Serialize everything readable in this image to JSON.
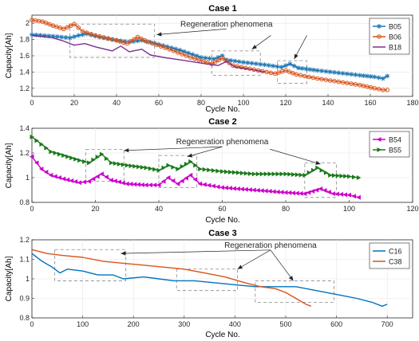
{
  "chart_data": [
    {
      "type": "line",
      "title": "Case 1",
      "xlabel": "Cycle No.",
      "ylabel": "Capacity[Ah]",
      "xlim": [
        0,
        180
      ],
      "ylim": [
        1.1,
        2.1
      ],
      "xticks": [
        "0",
        "20",
        "40",
        "60",
        "80",
        "100",
        "120",
        "140",
        "160",
        "180"
      ],
      "yticks": [
        "1.2",
        "1.4",
        "1.6",
        "1.8",
        "2"
      ],
      "legend_position": "top-right",
      "annotation": "Regeneration phenomena",
      "regions": [
        [
          18,
          58,
          1.58,
          1.99
        ],
        [
          85,
          108,
          1.36,
          1.66
        ],
        [
          116,
          130,
          1.26,
          1.54
        ]
      ],
      "arrows": [
        {
          "text_x": 92,
          "text_y": 1.96,
          "x": 59,
          "y": 1.86
        },
        {
          "text_x": 113,
          "text_y": 1.88,
          "x": 104,
          "y": 1.68
        },
        {
          "text_x": 130,
          "text_y": 1.88,
          "x": 124,
          "y": 1.56
        }
      ],
      "series": [
        {
          "name": "B05",
          "color": "#1f77b4",
          "marker": "star",
          "points": [
            [
              0,
              1.86
            ],
            [
              10,
              1.84
            ],
            [
              18,
              1.82
            ],
            [
              22,
              1.85
            ],
            [
              26,
              1.87
            ],
            [
              32,
              1.83
            ],
            [
              40,
              1.79
            ],
            [
              46,
              1.77
            ],
            [
              52,
              1.79
            ],
            [
              60,
              1.74
            ],
            [
              70,
              1.67
            ],
            [
              80,
              1.58
            ],
            [
              86,
              1.56
            ],
            [
              90,
              1.6
            ],
            [
              92,
              1.55
            ],
            [
              100,
              1.52
            ],
            [
              110,
              1.49
            ],
            [
              118,
              1.46
            ],
            [
              122,
              1.5
            ],
            [
              126,
              1.45
            ],
            [
              135,
              1.42
            ],
            [
              145,
              1.39
            ],
            [
              155,
              1.36
            ],
            [
              162,
              1.34
            ],
            [
              166,
              1.32
            ],
            [
              168,
              1.35
            ]
          ]
        },
        {
          "name": "B06",
          "color": "#d95319",
          "marker": "circle",
          "points": [
            [
              0,
              2.04
            ],
            [
              5,
              2.02
            ],
            [
              10,
              1.97
            ],
            [
              15,
              1.93
            ],
            [
              20,
              1.99
            ],
            [
              24,
              1.9
            ],
            [
              30,
              1.85
            ],
            [
              40,
              1.79
            ],
            [
              45,
              1.75
            ],
            [
              50,
              1.83
            ],
            [
              55,
              1.77
            ],
            [
              65,
              1.68
            ],
            [
              75,
              1.58
            ],
            [
              85,
              1.5
            ],
            [
              90,
              1.57
            ],
            [
              95,
              1.48
            ],
            [
              105,
              1.43
            ],
            [
              115,
              1.38
            ],
            [
              120,
              1.42
            ],
            [
              125,
              1.37
            ],
            [
              135,
              1.32
            ],
            [
              145,
              1.28
            ],
            [
              155,
              1.24
            ],
            [
              162,
              1.2
            ],
            [
              166,
              1.18
            ],
            [
              168,
              1.18
            ]
          ]
        },
        {
          "name": "B18",
          "color": "#7e2f8e",
          "marker": "line",
          "points": [
            [
              0,
              1.85
            ],
            [
              10,
              1.82
            ],
            [
              15,
              1.78
            ],
            [
              20,
              1.73
            ],
            [
              25,
              1.75
            ],
            [
              30,
              1.71
            ],
            [
              38,
              1.66
            ],
            [
              42,
              1.72
            ],
            [
              46,
              1.65
            ],
            [
              52,
              1.68
            ],
            [
              56,
              1.61
            ],
            [
              62,
              1.58
            ],
            [
              70,
              1.55
            ],
            [
              80,
              1.51
            ],
            [
              88,
              1.48
            ],
            [
              92,
              1.53
            ],
            [
              96,
              1.46
            ],
            [
              104,
              1.43
            ],
            [
              110,
              1.4
            ]
          ]
        }
      ]
    },
    {
      "type": "line",
      "title": "Case 2",
      "xlabel": "Cycle No.",
      "ylabel": "Capacity[Ah]",
      "xlim": [
        0,
        120
      ],
      "ylim": [
        0.8,
        1.4
      ],
      "xticks": [
        "0",
        "20",
        "40",
        "60",
        "80",
        "100",
        "120"
      ],
      "yticks": [
        "0.8",
        "1",
        "1.2",
        "1.4"
      ],
      "legend_position": "top-right",
      "annotation": "Regeneration phenomena",
      "regions": [
        [
          17,
          29,
          0.97,
          1.23
        ],
        [
          40,
          52,
          0.92,
          1.18
        ],
        [
          86,
          96,
          0.84,
          1.12
        ]
      ],
      "arrows": [
        {
          "text_x": 60,
          "text_y": 1.27,
          "x": 29,
          "y": 1.22
        },
        {
          "text_x": 60,
          "text_y": 1.27,
          "x": 49,
          "y": 1.17
        },
        {
          "text_x": 75,
          "text_y": 1.25,
          "x": 91,
          "y": 1.11
        }
      ],
      "series": [
        {
          "name": "B54",
          "color": "#cc00cc",
          "marker": "triangle-left",
          "points": [
            [
              0,
              1.17
            ],
            [
              3,
              1.07
            ],
            [
              6,
              1.02
            ],
            [
              10,
              0.99
            ],
            [
              15,
              0.96
            ],
            [
              18,
              0.97
            ],
            [
              22,
              1.03
            ],
            [
              25,
              0.98
            ],
            [
              30,
              0.95
            ],
            [
              36,
              0.94
            ],
            [
              40,
              0.94
            ],
            [
              43,
              1.0
            ],
            [
              46,
              0.95
            ],
            [
              50,
              1.02
            ],
            [
              53,
              0.95
            ],
            [
              60,
              0.92
            ],
            [
              70,
              0.9
            ],
            [
              80,
              0.88
            ],
            [
              86,
              0.87
            ],
            [
              91,
              0.91
            ],
            [
              95,
              0.87
            ],
            [
              100,
              0.86
            ],
            [
              103,
              0.84
            ]
          ]
        },
        {
          "name": "B55",
          "color": "#1a7a1a",
          "marker": "triangle-right",
          "points": [
            [
              0,
              1.33
            ],
            [
              3,
              1.27
            ],
            [
              6,
              1.21
            ],
            [
              10,
              1.18
            ],
            [
              15,
              1.14
            ],
            [
              18,
              1.12
            ],
            [
              22,
              1.19
            ],
            [
              25,
              1.12
            ],
            [
              30,
              1.1
            ],
            [
              36,
              1.08
            ],
            [
              40,
              1.06
            ],
            [
              43,
              1.1
            ],
            [
              46,
              1.07
            ],
            [
              50,
              1.13
            ],
            [
              53,
              1.07
            ],
            [
              60,
              1.05
            ],
            [
              70,
              1.03
            ],
            [
              80,
              1.03
            ],
            [
              86,
              1.02
            ],
            [
              90,
              1.08
            ],
            [
              94,
              1.02
            ],
            [
              100,
              1.01
            ],
            [
              103,
              1.0
            ]
          ]
        }
      ]
    },
    {
      "type": "line",
      "title": "Case 3",
      "xlabel": "Cycle No.",
      "ylabel": "Capacity[Ah]",
      "xlim": [
        0,
        750
      ],
      "ylim": [
        0.8,
        1.2
      ],
      "xticks": [
        "0",
        "100",
        "200",
        "300",
        "400",
        "500",
        "600",
        "700"
      ],
      "yticks": [
        "0.8",
        "0.9",
        "1",
        "1.1",
        "1.2"
      ],
      "legend_position": "top-right",
      "annotation": "Regeneration phenomena",
      "regions": [
        [
          45,
          185,
          0.99,
          1.15
        ],
        [
          285,
          405,
          0.94,
          1.05
        ],
        [
          440,
          595,
          0.88,
          0.99
        ]
      ],
      "arrows": [
        {
          "text_x": 470,
          "text_y": 1.16,
          "x": 175,
          "y": 1.13
        },
        {
          "text_x": 470,
          "text_y": 1.16,
          "x": 405,
          "y": 1.05
        },
        {
          "text_x": 470,
          "text_y": 1.16,
          "x": 515,
          "y": 0.99
        }
      ],
      "series": [
        {
          "name": "C16",
          "color": "#0072bd",
          "marker": "line",
          "points": [
            [
              0,
              1.13
            ],
            [
              20,
              1.09
            ],
            [
              40,
              1.06
            ],
            [
              55,
              1.03
            ],
            [
              70,
              1.05
            ],
            [
              100,
              1.04
            ],
            [
              130,
              1.02
            ],
            [
              160,
              1.02
            ],
            [
              180,
              1.0
            ],
            [
              220,
              1.01
            ],
            [
              250,
              1.0
            ],
            [
              280,
              0.99
            ],
            [
              320,
              0.99
            ],
            [
              360,
              0.98
            ],
            [
              400,
              0.97
            ],
            [
              440,
              0.96
            ],
            [
              480,
              0.96
            ],
            [
              520,
              0.96
            ],
            [
              560,
              0.94
            ],
            [
              600,
              0.92
            ],
            [
              640,
              0.9
            ],
            [
              670,
              0.88
            ],
            [
              690,
              0.86
            ],
            [
              700,
              0.87
            ]
          ]
        },
        {
          "name": "C38",
          "color": "#d95319",
          "marker": "line",
          "points": [
            [
              0,
              1.15
            ],
            [
              30,
              1.13
            ],
            [
              60,
              1.12
            ],
            [
              100,
              1.11
            ],
            [
              140,
              1.09
            ],
            [
              180,
              1.08
            ],
            [
              220,
              1.07
            ],
            [
              260,
              1.06
            ],
            [
              300,
              1.05
            ],
            [
              340,
              1.03
            ],
            [
              380,
              1.01
            ],
            [
              420,
              0.98
            ],
            [
              450,
              0.96
            ],
            [
              480,
              0.95
            ],
            [
              500,
              0.93
            ],
            [
              520,
              0.9
            ],
            [
              540,
              0.87
            ],
            [
              550,
              0.86
            ]
          ]
        }
      ]
    }
  ]
}
